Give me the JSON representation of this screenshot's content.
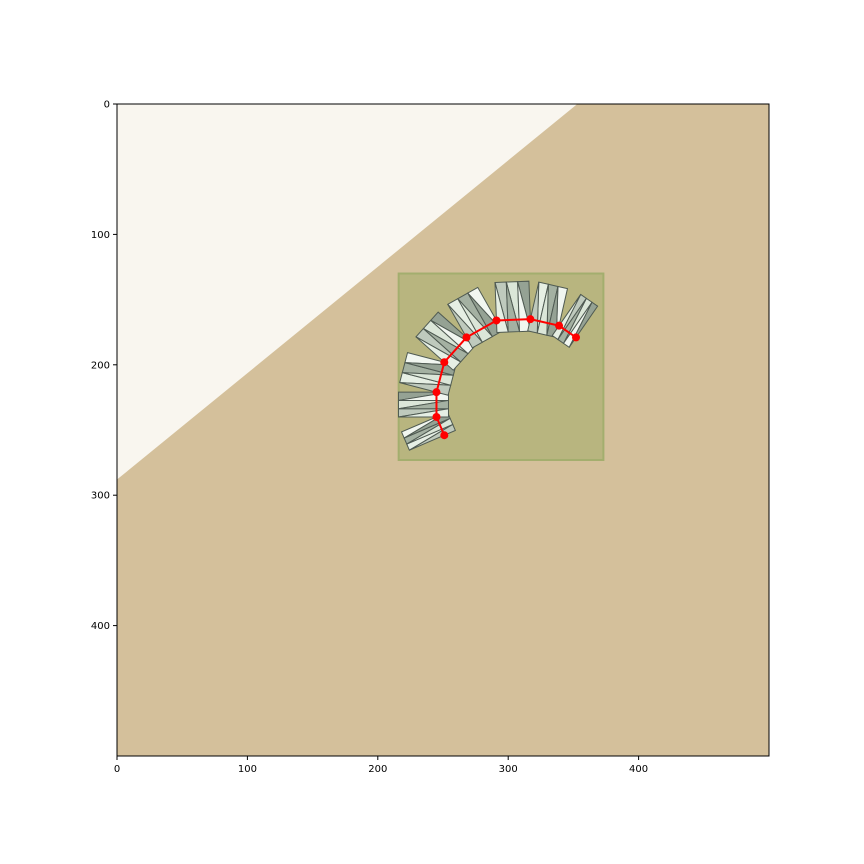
{
  "chart_data": {
    "type": "scatter",
    "title": "",
    "xlabel": "",
    "ylabel": "",
    "xlim": [
      0,
      500
    ],
    "ylim": [
      500,
      0
    ],
    "y_inverted": true,
    "grid": false,
    "legend": "none",
    "x_ticks": [
      0,
      100,
      200,
      300,
      400
    ],
    "y_ticks": [
      0,
      100,
      200,
      300,
      400
    ],
    "background": {
      "base_color": "#d4c09b",
      "light_region_color": "#f9f6ef",
      "light_region_polygon": [
        [
          0,
          0
        ],
        [
          353,
          0
        ],
        [
          0,
          288
        ]
      ]
    },
    "bounding_box": {
      "x0": 216,
      "y0": 130,
      "x1": 373,
      "y1": 273,
      "fill_color": "#b8b57f",
      "edge_color": "#a3ae6e"
    },
    "object": {
      "description_color": "#dde8dc",
      "edge_color": "#4f5a52"
    },
    "keypoints": {
      "color": "#ff0000",
      "x": [
        251,
        245,
        245,
        251,
        268,
        291,
        317,
        339,
        352
      ],
      "y": [
        254,
        240,
        221,
        198,
        179,
        166,
        165,
        170,
        179
      ]
    }
  }
}
